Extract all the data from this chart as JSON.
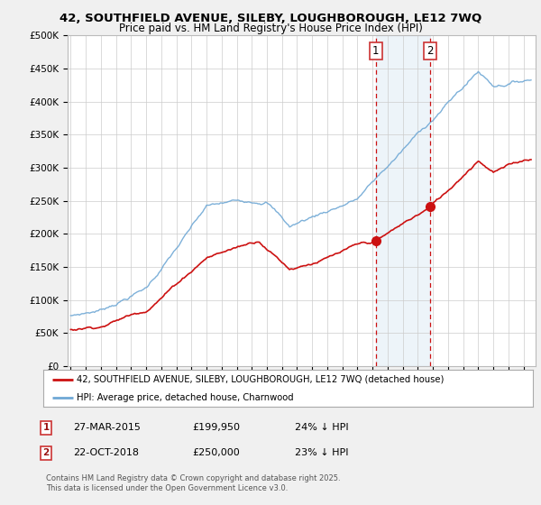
{
  "title_line1": "42, SOUTHFIELD AVENUE, SILEBY, LOUGHBOROUGH, LE12 7WQ",
  "title_line2": "Price paid vs. HM Land Registry's House Price Index (HPI)",
  "ylim": [
    0,
    500000
  ],
  "yticks": [
    0,
    50000,
    100000,
    150000,
    200000,
    250000,
    300000,
    350000,
    400000,
    450000,
    500000
  ],
  "ytick_labels": [
    "£0",
    "£50K",
    "£100K",
    "£150K",
    "£200K",
    "£250K",
    "£300K",
    "£350K",
    "£400K",
    "£450K",
    "£500K"
  ],
  "hpi_color": "#6fa8d5",
  "price_color": "#cc1111",
  "sale1_date": 2015.22,
  "sale1_price": 199950,
  "sale2_date": 2018.8,
  "sale2_price": 250000,
  "legend_property": "42, SOUTHFIELD AVENUE, SILEBY, LOUGHBOROUGH, LE12 7WQ (detached house)",
  "legend_hpi": "HPI: Average price, detached house, Charnwood",
  "copyright": "Contains HM Land Registry data © Crown copyright and database right 2025.\nThis data is licensed under the Open Government Licence v3.0.",
  "background_color": "#f0f0f0",
  "plot_bg_color": "#ffffff",
  "grid_color": "#cccccc"
}
